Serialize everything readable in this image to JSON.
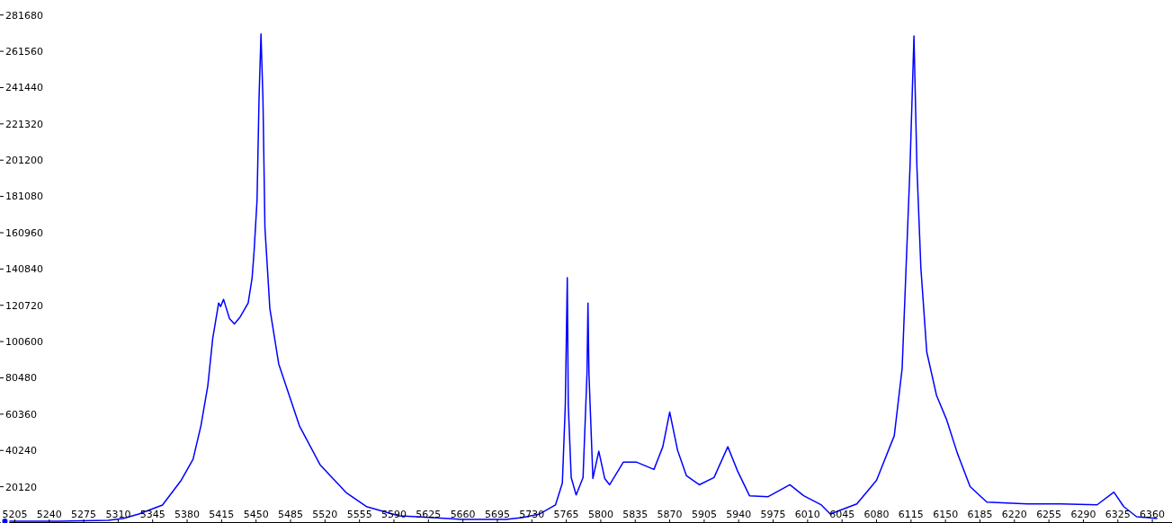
{
  "chart_data": {
    "type": "line",
    "xlim": [
      5190,
      6380
    ],
    "ylim": [
      0,
      290000
    ],
    "xticks": [
      5205,
      5240,
      5275,
      5310,
      5345,
      5380,
      5415,
      5450,
      5485,
      5520,
      5555,
      5590,
      5625,
      5660,
      5695,
      5730,
      5765,
      5800,
      5835,
      5870,
      5905,
      5940,
      5975,
      6010,
      6045,
      6080,
      6115,
      6150,
      6185,
      6220,
      6255,
      6290,
      6325,
      6360
    ],
    "yticks": [
      20120,
      40240,
      60360,
      80480,
      100600,
      120720,
      140840,
      160960,
      181080,
      201200,
      221320,
      241440,
      261560,
      281680
    ],
    "marker": "none",
    "line_style": "solid",
    "series": [
      {
        "color": "#0000ff",
        "x": [
          5195,
          5250,
          5300,
          5315,
          5331,
          5355,
          5374,
          5386,
          5394,
          5401,
          5406,
          5412,
          5414,
          5417,
          5423,
          5428,
          5434,
          5442,
          5446,
          5448,
          5451,
          5453,
          5455,
          5457,
          5459,
          5464,
          5473,
          5481,
          5494,
          5515,
          5542,
          5562,
          5595,
          5613,
          5659,
          5704,
          5720,
          5738,
          5754,
          5761,
          5764,
          5766,
          5767,
          5770,
          5775,
          5782,
          5786,
          5787,
          5788,
          5792,
          5798,
          5804,
          5809,
          5823,
          5836,
          5854,
          5863,
          5870,
          5878,
          5887,
          5900,
          5915,
          5929,
          5939,
          5951,
          5970,
          5992,
          6006,
          6024,
          6033,
          6060,
          6080,
          6098,
          6106,
          6110,
          6114,
          6118,
          6121,
          6125,
          6131,
          6141,
          6151,
          6162,
          6175,
          6192,
          6233,
          6267,
          6304,
          6321,
          6331,
          6344,
          6365
        ],
        "values": [
          1000,
          1000,
          1500,
          2500,
          5000,
          10000,
          23700,
          35300,
          53900,
          76100,
          102300,
          122000,
          120000,
          124000,
          113400,
          110400,
          114400,
          122000,
          136000,
          150700,
          179000,
          234900,
          271200,
          234900,
          163800,
          118900,
          88200,
          75100,
          53900,
          32300,
          16600,
          9100,
          4000,
          3500,
          2000,
          2000,
          3000,
          5000,
          10000,
          22200,
          65500,
          136000,
          65500,
          25200,
          15600,
          25200,
          82700,
          122000,
          82700,
          24700,
          39800,
          24700,
          21200,
          33800,
          33800,
          29700,
          42300,
          61500,
          40300,
          26200,
          21200,
          25200,
          42300,
          28700,
          15100,
          14600,
          21200,
          15100,
          10000,
          5000,
          10600,
          23700,
          48400,
          85700,
          141600,
          197600,
          270100,
          197600,
          141600,
          94800,
          70600,
          57500,
          38800,
          20200,
          11600,
          10600,
          10600,
          10100,
          17100,
          9100,
          3500,
          2500
        ]
      }
    ]
  }
}
